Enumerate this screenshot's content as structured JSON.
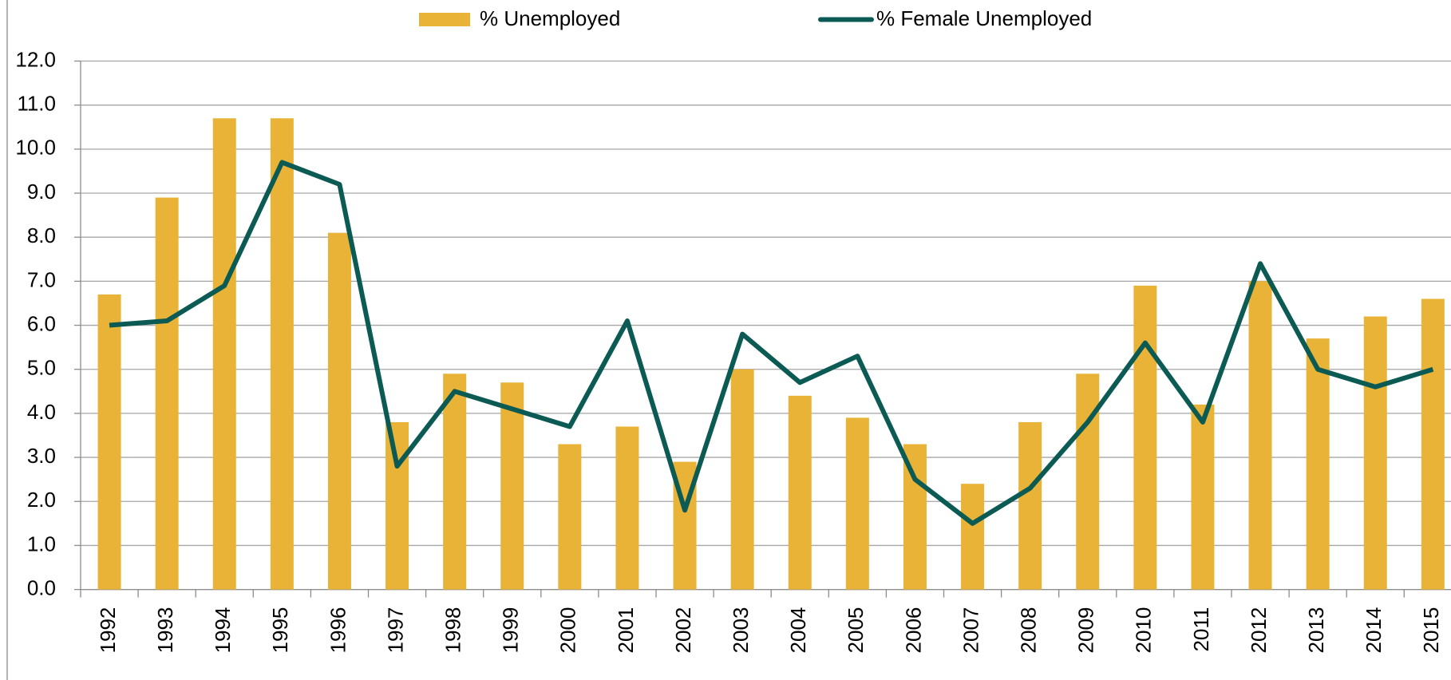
{
  "chart_data": {
    "type": "bar-line",
    "categories": [
      "1992",
      "1993",
      "1994",
      "1995",
      "1996",
      "1997",
      "1998",
      "1999",
      "2000",
      "2001",
      "2002",
      "2003",
      "2004",
      "2005",
      "2006",
      "2007",
      "2008",
      "2009",
      "2010",
      "2011",
      "2012",
      "2013",
      "2014",
      "2015"
    ],
    "series": [
      {
        "name": "% Unemployed",
        "type": "bar",
        "color": "#e8b337",
        "values": [
          6.7,
          8.9,
          10.7,
          10.7,
          8.1,
          3.8,
          4.9,
          4.7,
          3.3,
          3.7,
          2.9,
          5.0,
          4.4,
          3.9,
          3.3,
          2.4,
          3.8,
          4.9,
          6.9,
          4.2,
          7.0,
          5.7,
          6.2,
          6.6
        ]
      },
      {
        "name": "% Female Unemployed",
        "type": "line",
        "color": "#0b5a54",
        "values": [
          6.0,
          6.1,
          6.9,
          9.7,
          9.2,
          2.8,
          4.5,
          4.1,
          3.7,
          6.1,
          1.8,
          5.8,
          4.7,
          5.3,
          2.5,
          1.5,
          2.3,
          3.8,
          5.6,
          3.8,
          7.4,
          5.0,
          4.6,
          5.0
        ]
      }
    ],
    "ylim": [
      0,
      12
    ],
    "yticks": [
      {
        "value": 0,
        "label": "0.0"
      },
      {
        "value": 1,
        "label": "1.0"
      },
      {
        "value": 2,
        "label": "2.0"
      },
      {
        "value": 3,
        "label": "3.0"
      },
      {
        "value": 4,
        "label": "4.0"
      },
      {
        "value": 5,
        "label": "5.0"
      },
      {
        "value": 6,
        "label": "6.0"
      },
      {
        "value": 7,
        "label": "7.0"
      },
      {
        "value": 8,
        "label": "8.0"
      },
      {
        "value": 9,
        "label": "9.0"
      },
      {
        "value": 10,
        "label": "10.0"
      },
      {
        "value": 11,
        "label": "11.0"
      },
      {
        "value": 12,
        "label": "12.0"
      }
    ],
    "grid": true,
    "legend": "top"
  }
}
